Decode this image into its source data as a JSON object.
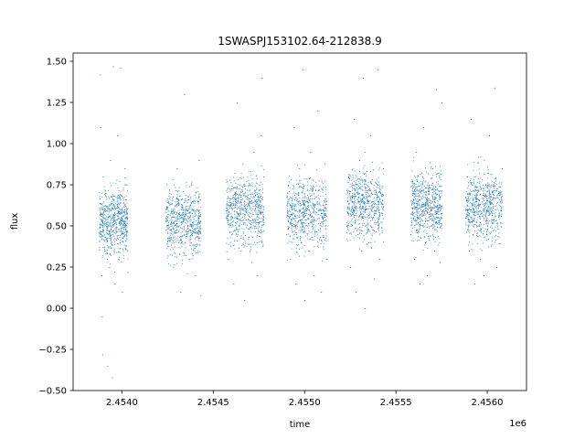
{
  "chart_data": {
    "type": "scatter",
    "title": "1SWASPJ153102.64-212838.9",
    "xlabel": "time",
    "ylabel": "flux",
    "x_offset_label": "1e6",
    "xlim": [
      2453733,
      2456215
    ],
    "ylim": [
      -0.5,
      1.55
    ],
    "xticks": [
      2454000,
      2454500,
      2455000,
      2455500,
      2456000
    ],
    "xtick_labels": [
      "2.4540",
      "2.4545",
      "2.4550",
      "2.4555",
      "2.4560"
    ],
    "yticks": [
      -0.5,
      -0.25,
      0.0,
      0.25,
      0.5,
      0.75,
      1.0,
      1.25,
      1.5
    ],
    "ytick_labels": [
      "−0.50",
      "−0.25",
      "0.00",
      "0.25",
      "0.50",
      "0.75",
      "1.00",
      "1.25",
      "1.50"
    ],
    "grid": false,
    "marker_color": "#1f77b4",
    "series": [
      {
        "points": [
          {
            "x": 2453875,
            "y": 0.61
          },
          {
            "x": 2453880,
            "y": 1.42
          },
          {
            "x": 2453882,
            "y": 1.1
          },
          {
            "x": 2453885,
            "y": 0.45
          },
          {
            "x": 2453888,
            "y": 0.2
          },
          {
            "x": 2453890,
            "y": -0.05
          },
          {
            "x": 2453893,
            "y": -0.28
          },
          {
            "x": 2453896,
            "y": 0.8
          },
          {
            "x": 2453900,
            "y": 0.55
          },
          {
            "x": 2453905,
            "y": 0.35
          },
          {
            "x": 2453910,
            "y": 0.7
          },
          {
            "x": 2453915,
            "y": 0.5
          },
          {
            "x": 2453920,
            "y": -0.35
          },
          {
            "x": 2453925,
            "y": 0.62
          },
          {
            "x": 2453930,
            "y": 0.25
          },
          {
            "x": 2453935,
            "y": 0.9
          },
          {
            "x": 2453940,
            "y": 0.4
          },
          {
            "x": 2453945,
            "y": -0.42
          },
          {
            "x": 2453950,
            "y": 1.47
          },
          {
            "x": 2453955,
            "y": 0.66
          },
          {
            "x": 2453960,
            "y": 0.15
          },
          {
            "x": 2453965,
            "y": 0.48
          },
          {
            "x": 2453970,
            "y": 0.78
          },
          {
            "x": 2453975,
            "y": 1.05
          },
          {
            "x": 2453980,
            "y": 0.3
          },
          {
            "x": 2453985,
            "y": 0.52
          },
          {
            "x": 2453990,
            "y": 1.46
          },
          {
            "x": 2453995,
            "y": 0.58
          },
          {
            "x": 2454000,
            "y": 0.1
          },
          {
            "x": 2454005,
            "y": 0.72
          },
          {
            "x": 2454010,
            "y": 0.44
          },
          {
            "x": 2454015,
            "y": 0.85
          },
          {
            "x": 2454020,
            "y": 0.38
          },
          {
            "x": 2454025,
            "y": 0.6
          },
          {
            "x": 2454030,
            "y": 0.22
          }
        ]
      },
      {
        "points": [
          {
            "x": 2454240,
            "y": 0.55
          },
          {
            "x": 2454250,
            "y": 0.32
          },
          {
            "x": 2454260,
            "y": 0.7
          },
          {
            "x": 2454270,
            "y": 0.48
          },
          {
            "x": 2454280,
            "y": 0.25
          },
          {
            "x": 2454290,
            "y": 0.62
          },
          {
            "x": 2454300,
            "y": 0.85
          },
          {
            "x": 2454310,
            "y": 0.4
          },
          {
            "x": 2454320,
            "y": 0.1
          },
          {
            "x": 2454330,
            "y": 0.58
          },
          {
            "x": 2454340,
            "y": 1.3
          },
          {
            "x": 2454350,
            "y": 0.45
          },
          {
            "x": 2454360,
            "y": 0.68
          },
          {
            "x": 2454370,
            "y": 0.3
          },
          {
            "x": 2454380,
            "y": 0.75
          },
          {
            "x": 2454390,
            "y": 0.52
          },
          {
            "x": 2454400,
            "y": 0.2
          },
          {
            "x": 2454410,
            "y": 0.6
          },
          {
            "x": 2454420,
            "y": 0.9
          },
          {
            "x": 2454430,
            "y": 0.08
          }
        ]
      },
      {
        "points": [
          {
            "x": 2454570,
            "y": 0.55
          },
          {
            "x": 2454580,
            "y": 0.3
          },
          {
            "x": 2454590,
            "y": 0.78
          },
          {
            "x": 2454600,
            "y": 0.45
          },
          {
            "x": 2454610,
            "y": 0.15
          },
          {
            "x": 2454620,
            "y": 0.65
          },
          {
            "x": 2454630,
            "y": 1.25
          },
          {
            "x": 2454640,
            "y": 0.5
          },
          {
            "x": 2454650,
            "y": 0.35
          },
          {
            "x": 2454660,
            "y": 0.88
          },
          {
            "x": 2454670,
            "y": 0.05
          },
          {
            "x": 2454680,
            "y": 0.6
          },
          {
            "x": 2454690,
            "y": 0.42
          },
          {
            "x": 2454700,
            "y": 0.72
          },
          {
            "x": 2454710,
            "y": 0.28
          },
          {
            "x": 2454720,
            "y": 0.95
          },
          {
            "x": 2454730,
            "y": 0.5
          },
          {
            "x": 2454740,
            "y": 0.2
          },
          {
            "x": 2454750,
            "y": 0.66
          },
          {
            "x": 2454760,
            "y": 1.05
          },
          {
            "x": 2454765,
            "y": 1.4
          },
          {
            "x": 2454770,
            "y": 0.38
          },
          {
            "x": 2454775,
            "y": 0.8
          }
        ]
      },
      {
        "points": [
          {
            "x": 2454900,
            "y": 0.45
          },
          {
            "x": 2454910,
            "y": 0.75
          },
          {
            "x": 2454920,
            "y": 0.3
          },
          {
            "x": 2454930,
            "y": 0.6
          },
          {
            "x": 2454940,
            "y": 1.1
          },
          {
            "x": 2454950,
            "y": 0.15
          },
          {
            "x": 2454960,
            "y": 0.52
          },
          {
            "x": 2454970,
            "y": 0.85
          },
          {
            "x": 2454980,
            "y": 0.4
          },
          {
            "x": 2454990,
            "y": 1.45
          },
          {
            "x": 2455000,
            "y": 0.05
          },
          {
            "x": 2455010,
            "y": 0.65
          },
          {
            "x": 2455020,
            "y": 0.35
          },
          {
            "x": 2455030,
            "y": 0.95
          },
          {
            "x": 2455040,
            "y": 0.5
          },
          {
            "x": 2455050,
            "y": 0.2
          },
          {
            "x": 2455060,
            "y": 0.72
          },
          {
            "x": 2455070,
            "y": 1.2
          },
          {
            "x": 2455080,
            "y": 0.42
          },
          {
            "x": 2455090,
            "y": 0.1
          },
          {
            "x": 2455100,
            "y": 0.6
          },
          {
            "x": 2455110,
            "y": 0.88
          },
          {
            "x": 2455120,
            "y": 0.3
          }
        ]
      },
      {
        "points": [
          {
            "x": 2455230,
            "y": 0.5
          },
          {
            "x": 2455240,
            "y": 0.8
          },
          {
            "x": 2455250,
            "y": 0.25
          },
          {
            "x": 2455260,
            "y": 0.62
          },
          {
            "x": 2455270,
            "y": 1.15
          },
          {
            "x": 2455280,
            "y": 0.1
          },
          {
            "x": 2455290,
            "y": 0.45
          },
          {
            "x": 2455300,
            "y": 0.9
          },
          {
            "x": 2455310,
            "y": 0.35
          },
          {
            "x": 2455320,
            "y": 1.4
          },
          {
            "x": 2455330,
            "y": 0.0
          },
          {
            "x": 2455340,
            "y": 0.68
          },
          {
            "x": 2455350,
            "y": 0.4
          },
          {
            "x": 2455360,
            "y": 1.05
          },
          {
            "x": 2455370,
            "y": 0.55
          },
          {
            "x": 2455380,
            "y": 0.18
          },
          {
            "x": 2455390,
            "y": 0.76
          },
          {
            "x": 2455400,
            "y": 1.45
          },
          {
            "x": 2455410,
            "y": 0.3
          },
          {
            "x": 2455420,
            "y": 0.58
          },
          {
            "x": 2455430,
            "y": 0.85
          }
        ]
      },
      {
        "points": [
          {
            "x": 2455580,
            "y": 0.45
          },
          {
            "x": 2455590,
            "y": 0.7
          },
          {
            "x": 2455600,
            "y": 0.3
          },
          {
            "x": 2455610,
            "y": 0.95
          },
          {
            "x": 2455620,
            "y": 0.55
          },
          {
            "x": 2455630,
            "y": 0.15
          },
          {
            "x": 2455640,
            "y": 0.62
          },
          {
            "x": 2455650,
            "y": 1.1
          },
          {
            "x": 2455660,
            "y": 0.4
          },
          {
            "x": 2455670,
            "y": 0.2
          },
          {
            "x": 2455680,
            "y": 0.75
          },
          {
            "x": 2455690,
            "y": 0.5
          },
          {
            "x": 2455700,
            "y": 0.85
          },
          {
            "x": 2455710,
            "y": 0.35
          },
          {
            "x": 2455720,
            "y": 1.33
          },
          {
            "x": 2455730,
            "y": 0.6
          },
          {
            "x": 2455740,
            "y": 0.28
          },
          {
            "x": 2455750,
            "y": 1.25
          }
        ]
      },
      {
        "points": [
          {
            "x": 2455880,
            "y": 0.55
          },
          {
            "x": 2455890,
            "y": 0.8
          },
          {
            "x": 2455900,
            "y": 0.35
          },
          {
            "x": 2455910,
            "y": 1.15
          },
          {
            "x": 2455920,
            "y": 0.45
          },
          {
            "x": 2455930,
            "y": 0.15
          },
          {
            "x": 2455940,
            "y": 0.65
          },
          {
            "x": 2455950,
            "y": 0.92
          },
          {
            "x": 2455960,
            "y": 0.3
          },
          {
            "x": 2455970,
            "y": 0.58
          },
          {
            "x": 2455980,
            "y": 0.2
          },
          {
            "x": 2455990,
            "y": 0.75
          },
          {
            "x": 2456000,
            "y": 0.48
          },
          {
            "x": 2456010,
            "y": 1.05
          },
          {
            "x": 2456020,
            "y": 0.38
          },
          {
            "x": 2456030,
            "y": 0.62
          },
          {
            "x": 2456040,
            "y": 1.34
          },
          {
            "x": 2456050,
            "y": 0.25
          },
          {
            "x": 2456060,
            "y": 0.7
          },
          {
            "x": 2456070,
            "y": 0.52
          },
          {
            "x": 2456080,
            "y": 0.85
          }
        ]
      }
    ]
  }
}
